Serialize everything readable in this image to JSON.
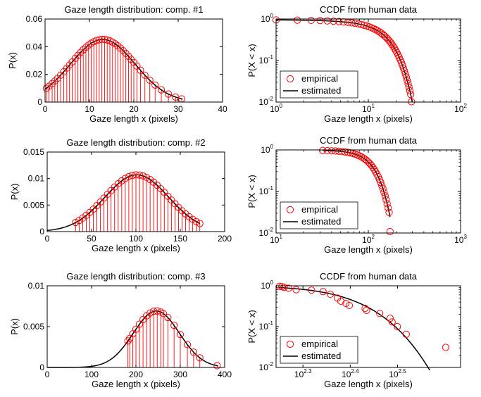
{
  "colors": {
    "empirical": "#ff0000",
    "estimated": "#000000",
    "stem": "#ff0000"
  },
  "chart_data": [
    {
      "type": "scatter",
      "id": "p1",
      "scale": "linear",
      "title": "Gaze length distribution: comp. #1",
      "xlabel": "Gaze length  x (pixels)",
      "ylabel": "P(x)",
      "xlim": [
        0,
        40
      ],
      "ylim": [
        0,
        0.06
      ],
      "xticks": [
        0,
        10,
        20,
        30,
        40
      ],
      "xtick_labels": [
        "0",
        "10",
        "20",
        "30",
        "40"
      ],
      "yticks": [
        0,
        0.02,
        0.04,
        0.06
      ],
      "ytick_labels": [
        "0",
        "0.02",
        "0.04",
        "0.06"
      ],
      "fit": {
        "kind": "gaussian",
        "mu": 13,
        "sigma": 7.3,
        "peak": 0.0453,
        "x_range": [
          0,
          31
        ]
      },
      "points_x": [
        0.3,
        0.9,
        1.6,
        2.2,
        2.8,
        3.5,
        4.2,
        4.9,
        5.5,
        6.1,
        6.8,
        7.4,
        8.0,
        8.6,
        9.2,
        9.8,
        10.4,
        11.0,
        11.6,
        12.2,
        12.8,
        13.4,
        14.0,
        14.6,
        15.2,
        15.8,
        16.4,
        17.0,
        17.6,
        18.2,
        18.8,
        19.4,
        20.0,
        20.7,
        21.5,
        22.5,
        23.6,
        24.8,
        26.2,
        27.8,
        29.4,
        30.8
      ],
      "series": [
        {
          "name": "empirical"
        },
        {
          "name": "estimated"
        }
      ]
    },
    {
      "type": "line",
      "id": "c1",
      "scale": "loglog",
      "title": "CCDF from human data",
      "xlabel": "Gaze length  x (pixels)",
      "ylabel": "P(X < x)",
      "xlim": [
        1,
        100
      ],
      "ylim": [
        0.01,
        1
      ],
      "xticks": [
        1,
        10,
        100
      ],
      "xtick_labels": [
        "10^0",
        "10^1",
        "10^2"
      ],
      "yticks": [
        0.01,
        0.1,
        1
      ],
      "ytick_labels": [
        "10^-2",
        "10^-1",
        "10^0"
      ],
      "fit": {
        "kind": "gauss_ccdf",
        "mu": 13,
        "sigma": 7.3,
        "x_range": [
          1,
          30
        ]
      },
      "points_x": [
        1.0,
        1.7,
        2.4,
        3.0,
        3.6,
        4.2,
        4.8,
        5.4,
        6.0,
        6.6,
        7.2,
        7.8,
        8.4,
        9.0,
        9.6,
        10.2,
        10.8,
        11.4,
        12.0,
        12.6,
        13.2,
        13.8,
        14.4,
        15.0,
        15.6,
        16.2,
        16.8,
        17.4,
        18.0,
        18.6,
        19.2,
        19.8,
        20.4,
        21.0,
        21.6,
        22.2,
        22.8,
        23.4,
        24.0,
        24.6,
        25.2,
        25.8,
        26.4,
        27.0,
        27.6,
        28.2,
        28.8,
        29.4
      ],
      "points_y_override": {
        "last_y": 0.0102
      },
      "series": [
        {
          "name": "empirical"
        },
        {
          "name": "estimated"
        }
      ],
      "legend": {
        "placement": "bottom-left",
        "entries": [
          "empirical",
          "estimated"
        ]
      }
    },
    {
      "type": "scatter",
      "id": "p2",
      "scale": "linear",
      "title": "Gaze length distribution: comp. #2",
      "xlabel": "Gaze length  x (pixels)",
      "ylabel": "P(x)",
      "xlim": [
        0,
        200
      ],
      "ylim": [
        0,
        0.015
      ],
      "xticks": [
        0,
        50,
        100,
        150,
        200
      ],
      "xtick_labels": [
        "0",
        "50",
        "100",
        "150",
        "200"
      ],
      "yticks": [
        0,
        0.005,
        0.01,
        0.015
      ],
      "ytick_labels": [
        "0",
        "0.005",
        "0.01",
        "0.015"
      ],
      "fit": {
        "kind": "gaussian",
        "mu": 101,
        "sigma": 36,
        "peak": 0.0107,
        "x_range": [
          0,
          172
        ]
      },
      "points_x": [
        32,
        36,
        40,
        44,
        48,
        52,
        56,
        60,
        64,
        68,
        72,
        76,
        80,
        84,
        88,
        92,
        96,
        100,
        104,
        108,
        112,
        116,
        120,
        124,
        128,
        132,
        136,
        140,
        144,
        148,
        152,
        156,
        160,
        164,
        168,
        172
      ],
      "series": [
        {
          "name": "empirical"
        },
        {
          "name": "estimated"
        }
      ]
    },
    {
      "type": "line",
      "id": "c2",
      "scale": "loglog",
      "title": "CCDF from human data",
      "xlabel": "Gaze length  x (pixels)",
      "ylabel": "P(X < x)",
      "xlim": [
        10,
        1000
      ],
      "ylim": [
        0.01,
        1
      ],
      "xticks": [
        10,
        100,
        1000
      ],
      "xtick_labels": [
        "10^1",
        "10^2",
        "10^3"
      ],
      "yticks": [
        0.01,
        0.1,
        1
      ],
      "ytick_labels": [
        "10^-2",
        "10^-1",
        "10^0"
      ],
      "fit": {
        "kind": "gauss_ccdf",
        "mu": 101,
        "sigma": 36,
        "x_range": [
          32,
          172
        ]
      },
      "points_x": [
        32,
        36,
        40,
        44,
        48,
        52,
        56,
        60,
        64,
        68,
        72,
        76,
        80,
        84,
        88,
        92,
        96,
        100,
        104,
        108,
        112,
        116,
        120,
        124,
        128,
        132,
        136,
        140,
        144,
        148,
        152,
        156,
        160,
        164,
        168,
        172
      ],
      "points_y_override": {
        "last_y": 0.0108
      },
      "series": [
        {
          "name": "empirical"
        },
        {
          "name": "estimated"
        }
      ],
      "legend": {
        "placement": "bottom-left",
        "entries": [
          "empirical",
          "estimated"
        ]
      }
    },
    {
      "type": "scatter",
      "id": "p3",
      "scale": "linear",
      "title": "Gaze length distribution: comp. #3",
      "xlabel": "Gaze length  x (pixels)",
      "ylabel": "P(x)",
      "xlim": [
        0,
        400
      ],
      "ylim": [
        0,
        0.01
      ],
      "xticks": [
        0,
        100,
        200,
        300,
        400
      ],
      "xtick_labels": [
        "0",
        "100",
        "200",
        "300",
        "400"
      ],
      "yticks": [
        0,
        0.005,
        0.01
      ],
      "ytick_labels": [
        "0",
        "0.005",
        "0.01"
      ],
      "fit": {
        "kind": "gaussian",
        "mu": 246,
        "sigma": 52,
        "peak": 0.00692,
        "x_range": [
          0,
          385
        ]
      },
      "points_x": [
        182,
        186,
        193,
        200,
        208,
        216,
        224,
        232,
        240,
        248,
        256,
        262,
        272,
        286,
        300,
        316,
        330,
        344,
        383
      ],
      "series": [
        {
          "name": "empirical"
        },
        {
          "name": "estimated"
        }
      ]
    },
    {
      "type": "line",
      "id": "c3",
      "scale": "loglog",
      "title": "CCDF from human data",
      "xlabel": "Gaze length  x (pixels)",
      "ylabel": "P(X < x)",
      "xlim": [
        175,
        430
      ],
      "ylim": [
        0.01,
        1
      ],
      "xticks": [
        199.5,
        251.2,
        316.2
      ],
      "xtick_labels": [
        "10^2.3",
        "10^2.4",
        "10^2.5"
      ],
      "yticks": [
        0.01,
        0.1,
        1
      ],
      "ytick_labels": [
        "10^-2",
        "10^-1",
        "10^0"
      ],
      "fit": {
        "kind": "gauss_ccdf",
        "mu": 246,
        "sigma": 52,
        "x_range": [
          177,
          430
        ]
      },
      "points": [
        [
          178,
          0.97
        ],
        [
          180,
          0.95
        ],
        [
          182,
          0.92
        ],
        [
          186,
          0.87
        ],
        [
          193,
          0.8
        ],
        [
          208,
          0.78
        ],
        [
          220,
          0.72
        ],
        [
          228,
          0.62
        ],
        [
          236,
          0.5
        ],
        [
          240,
          0.42
        ],
        [
          246,
          0.37
        ],
        [
          250,
          0.33
        ],
        [
          270,
          0.28
        ],
        [
          272,
          0.25
        ],
        [
          290,
          0.21
        ],
        [
          305,
          0.16
        ],
        [
          308,
          0.13
        ],
        [
          316,
          0.1
        ],
        [
          330,
          0.065
        ],
        [
          400,
          0.031
        ]
      ],
      "series": [
        {
          "name": "empirical"
        },
        {
          "name": "estimated"
        }
      ],
      "legend": {
        "placement": "bottom-left",
        "entries": [
          "empirical",
          "estimated"
        ]
      }
    }
  ]
}
